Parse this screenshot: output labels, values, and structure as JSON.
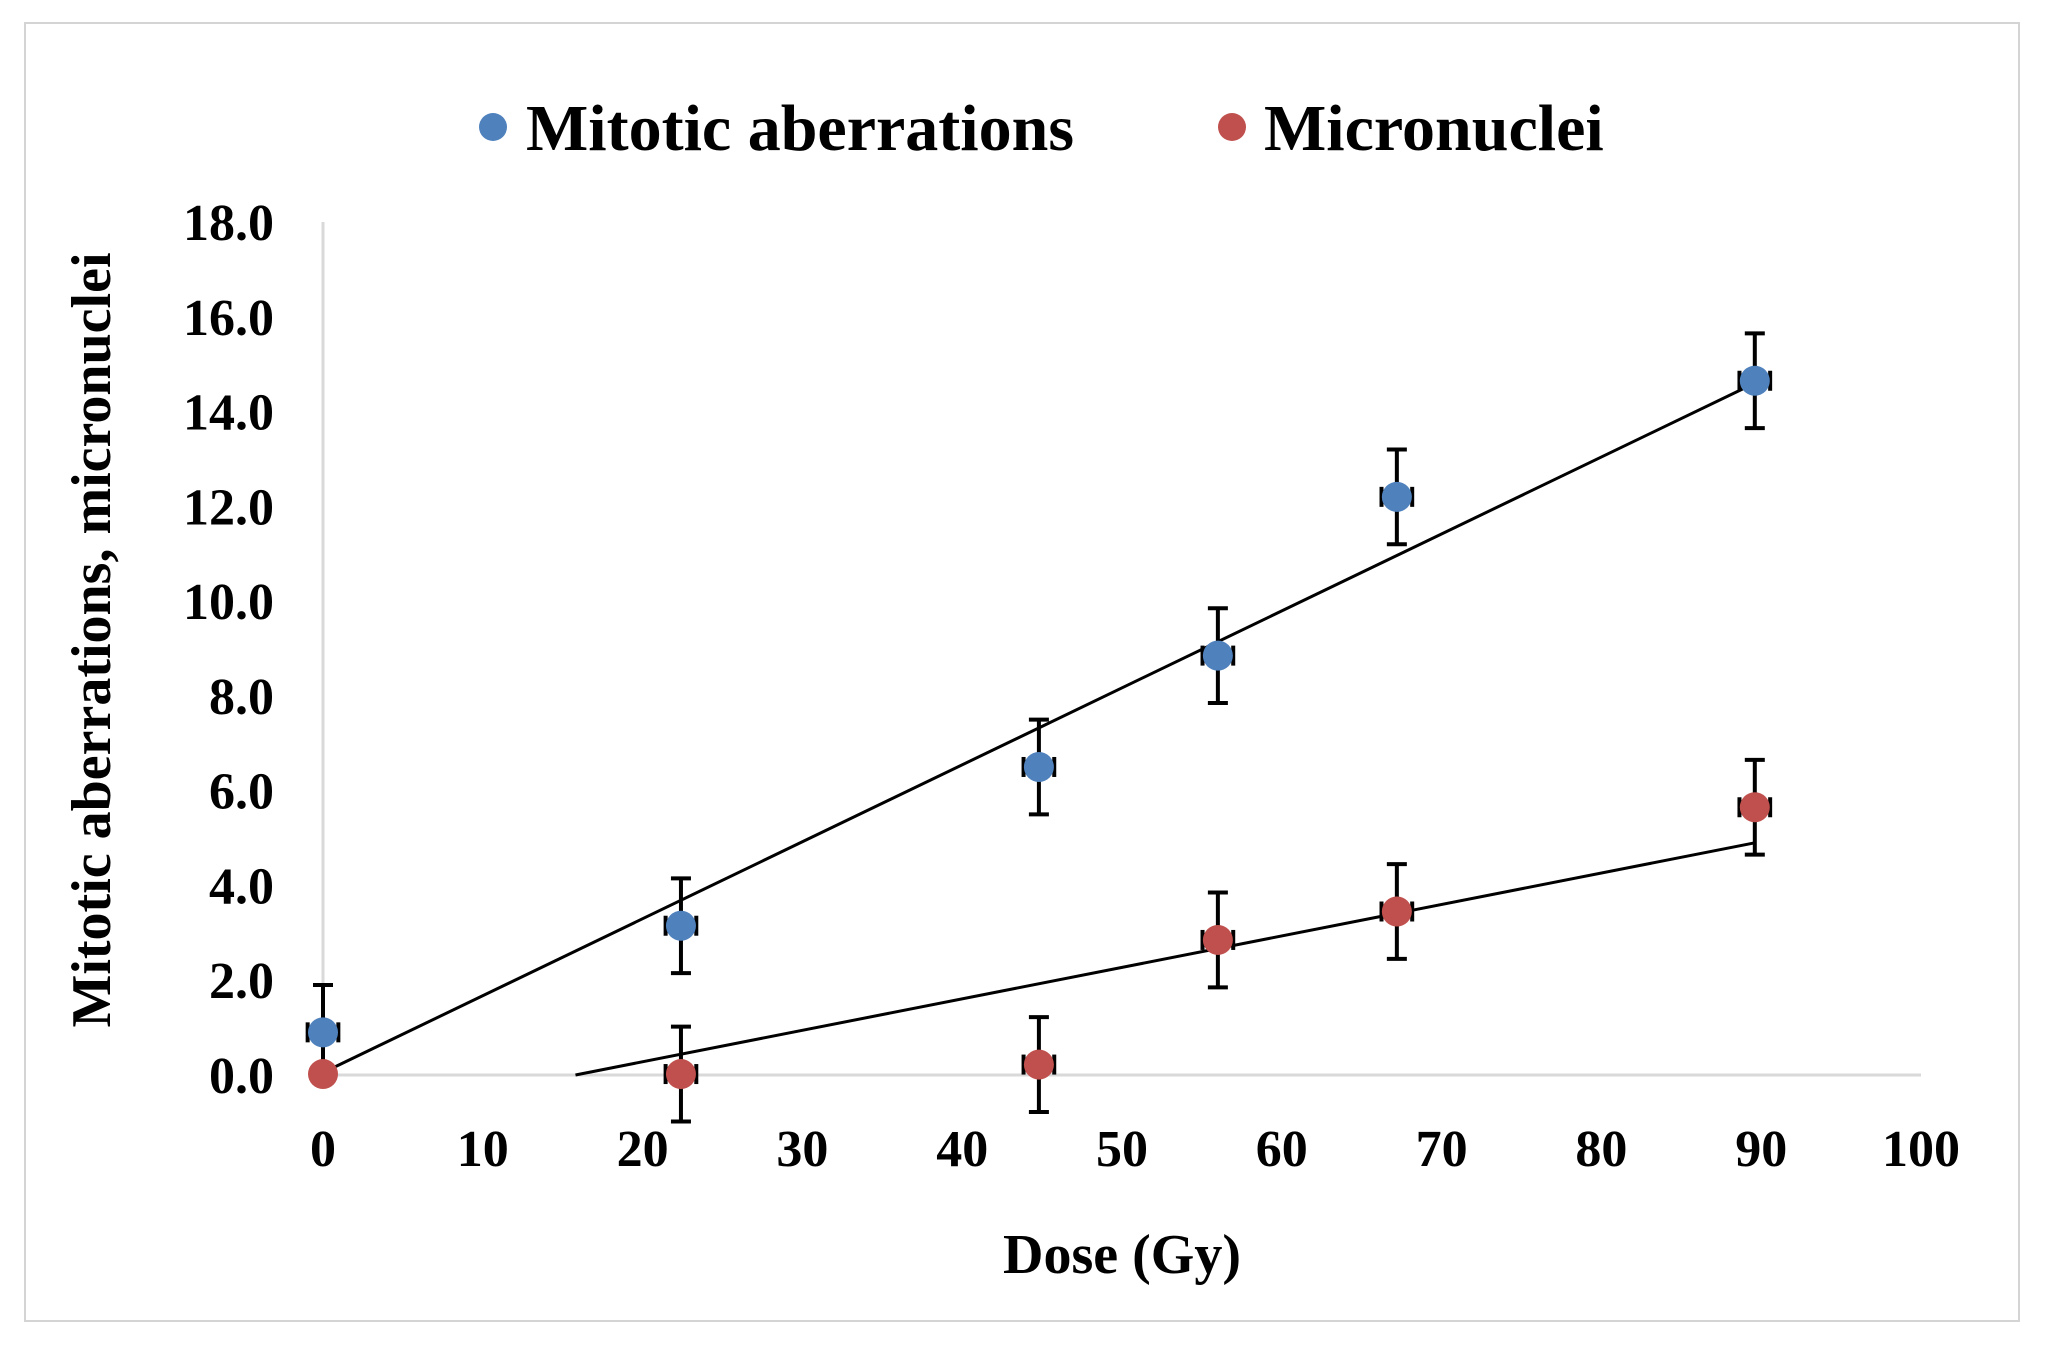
{
  "chart_data": {
    "type": "scatter",
    "title": "",
    "xlabel": "Dose (Gy)",
    "ylabel": "Mitotic aberrations, micronuclei",
    "xlim": [
      0,
      100
    ],
    "ylim": [
      0,
      18
    ],
    "xticks": [
      0,
      10,
      20,
      30,
      40,
      50,
      60,
      70,
      80,
      90,
      100
    ],
    "xtick_labels": [
      "0",
      "10",
      "20",
      "30",
      "40",
      "50",
      "60",
      "70",
      "80",
      "90",
      "100"
    ],
    "yticks": [
      0,
      2,
      4,
      6,
      8,
      10,
      12,
      14,
      16,
      18
    ],
    "ytick_labels": [
      "0.0",
      "2.0",
      "4.0",
      "6.0",
      "8.0",
      "10.0",
      "12.0",
      "14.0",
      "16.0",
      "18.0"
    ],
    "grid": false,
    "legend_position": "top",
    "series": [
      {
        "name": "Mitotic aberrations",
        "color": "#4f81bd",
        "x": [
          0,
          22.4,
          44.8,
          56,
          67.2,
          89.6
        ],
        "y": [
          0.9,
          3.15,
          6.5,
          8.85,
          12.2,
          14.65
        ],
        "y_err": [
          1.0,
          1.0,
          1.0,
          1.0,
          1.0,
          1.0
        ],
        "x_err": [
          0.6,
          0.6,
          0.6,
          0.6,
          0.6,
          0.6
        ],
        "trendline": {
          "type": "linear",
          "x_range": [
            0,
            89.6
          ],
          "y_range": [
            0.05,
            14.6
          ]
        }
      },
      {
        "name": "Micronuclei",
        "color": "#c0504d",
        "x": [
          0,
          22.4,
          44.8,
          56,
          67.2,
          89.6
        ],
        "y": [
          0.02,
          0.02,
          0.22,
          2.85,
          3.45,
          5.65
        ],
        "y_err": [
          0.0,
          1.0,
          1.0,
          1.0,
          1.0,
          1.0
        ],
        "x_err": [
          0.0,
          0.6,
          0.6,
          0.6,
          0.6,
          0.6
        ],
        "trendline": {
          "type": "linear",
          "x_range": [
            15.8,
            89.6
          ],
          "y_range": [
            0.0,
            4.9
          ]
        }
      }
    ]
  }
}
